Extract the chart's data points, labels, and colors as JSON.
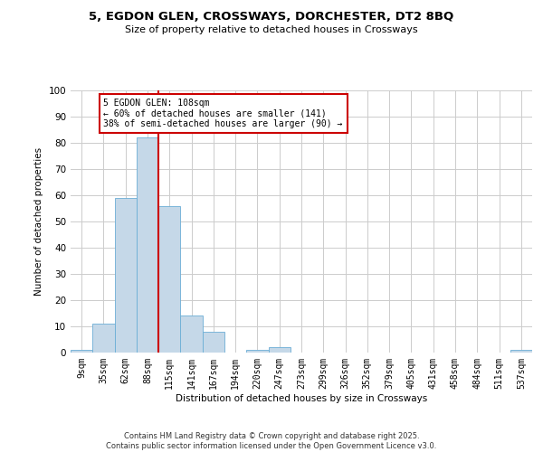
{
  "title": "5, EGDON GLEN, CROSSWAYS, DORCHESTER, DT2 8BQ",
  "subtitle": "Size of property relative to detached houses in Crossways",
  "xlabel": "Distribution of detached houses by size in Crossways",
  "ylabel": "Number of detached properties",
  "bar_labels": [
    "9sqm",
    "35sqm",
    "62sqm",
    "88sqm",
    "115sqm",
    "141sqm",
    "167sqm",
    "194sqm",
    "220sqm",
    "247sqm",
    "273sqm",
    "299sqm",
    "326sqm",
    "352sqm",
    "379sqm",
    "405sqm",
    "431sqm",
    "458sqm",
    "484sqm",
    "511sqm",
    "537sqm"
  ],
  "bar_heights": [
    1,
    11,
    59,
    82,
    56,
    14,
    8,
    0,
    1,
    2,
    0,
    0,
    0,
    0,
    0,
    0,
    0,
    0,
    0,
    0,
    1
  ],
  "bar_color": "#c5d8e8",
  "bar_edge_color": "#6baed6",
  "vline_color": "#cc0000",
  "annotation_text": "5 EGDON GLEN: 108sqm\n← 60% of detached houses are smaller (141)\n38% of semi-detached houses are larger (90) →",
  "annotation_box_color": "#cc0000",
  "ylim": [
    0,
    100
  ],
  "yticks": [
    0,
    10,
    20,
    30,
    40,
    50,
    60,
    70,
    80,
    90,
    100
  ],
  "background_color": "#ffffff",
  "grid_color": "#cccccc",
  "footer_line1": "Contains HM Land Registry data © Crown copyright and database right 2025.",
  "footer_line2": "Contains public sector information licensed under the Open Government Licence v3.0."
}
